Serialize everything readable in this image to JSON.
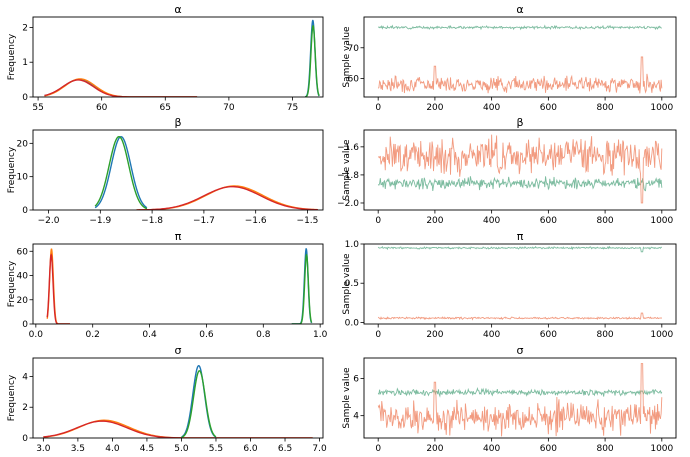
{
  "figure": {
    "kind": "traceplot",
    "panels_per_row": 2
  },
  "colors": {
    "chain_a": "#1f77b4",
    "chain_b": "#ff7f0e",
    "chain_c": "#2ca02c",
    "chain_d": "#d62728",
    "trace_high": "#66b08f",
    "trace_low": "#f08a6a"
  },
  "chart_data": [
    {
      "type": "line",
      "title": "α",
      "ylabel": "Frequency",
      "xlim": [
        54.6,
        77.4
      ],
      "ylim": [
        0,
        2.3
      ],
      "xticks": [
        55,
        60,
        65,
        70,
        75
      ],
      "xtick_labels": [
        "55",
        "60",
        "65",
        "70",
        "75"
      ],
      "yticks": [
        0,
        1,
        2
      ],
      "ytick_labels": [
        "0",
        "1",
        "2"
      ],
      "modes": [
        {
          "center": 58.2,
          "sd": 1.2,
          "peak": 0.5,
          "range": [
            55.5,
            67.5
          ],
          "series": [
            {
              "color": "chain_a",
              "values_scale": 1.0,
              "shift": 0.0
            },
            {
              "color": "chain_b",
              "values_scale": 1.04,
              "shift": 0.1
            },
            {
              "color": "chain_d",
              "values_scale": 0.98,
              "shift": -0.05
            }
          ]
        },
        {
          "center": 76.6,
          "sd": 0.17,
          "peak": 2.2,
          "range": [
            76.0,
            77.1
          ],
          "series": [
            {
              "color": "chain_a",
              "values_scale": 1.0,
              "shift": 0.0
            },
            {
              "color": "chain_c",
              "values_scale": 0.93,
              "shift": 0.02
            }
          ]
        }
      ]
    },
    {
      "type": "line",
      "title": "α",
      "ylabel": "Sample value",
      "xlim": [
        -50,
        1050
      ],
      "ylim": [
        54,
        80
      ],
      "xticks": [
        0,
        200,
        400,
        600,
        800,
        1000
      ],
      "xtick_labels": [
        "0",
        "200",
        "400",
        "600",
        "800",
        "1000"
      ],
      "yticks": [
        60,
        70
      ],
      "ytick_labels": [
        "60",
        "70"
      ],
      "traces": [
        {
          "color": "trace_high",
          "mean": 76.6,
          "noise": 0.2,
          "seed": 3
        },
        {
          "color": "trace_low",
          "mean": 58.2,
          "noise": 1.2,
          "seed": 7,
          "spikes": [
            [
              200,
              64
            ],
            [
              930,
              67
            ]
          ]
        }
      ]
    },
    {
      "type": "line",
      "title": "β",
      "ylabel": "Frequency",
      "xlim": [
        -2.03,
        -1.47
      ],
      "ylim": [
        0,
        24
      ],
      "xticks": [
        -2.0,
        -1.9,
        -1.8,
        -1.7,
        -1.6,
        -1.5
      ],
      "xtick_labels": [
        "−2.0",
        "−1.9",
        "−1.8",
        "−1.7",
        "−1.6",
        "−1.5"
      ],
      "yticks": [
        0,
        10,
        20
      ],
      "ytick_labels": [
        "0",
        "10",
        "20"
      ],
      "modes": [
        {
          "center": -1.86,
          "sd": 0.019,
          "peak": 22,
          "range": [
            -1.91,
            -1.81
          ],
          "series": [
            {
              "color": "chain_a",
              "values_scale": 1.0,
              "shift": 0.0
            },
            {
              "color": "chain_c",
              "values_scale": 1.0,
              "shift": -0.004
            }
          ]
        },
        {
          "center": -1.645,
          "sd": 0.055,
          "peak": 7,
          "range": [
            -1.83,
            -1.48
          ],
          "series": [
            {
              "color": "chain_b",
              "values_scale": 1.03,
              "shift": 0.004
            },
            {
              "color": "chain_d",
              "values_scale": 1.0,
              "shift": 0.0
            }
          ]
        }
      ]
    },
    {
      "type": "line",
      "title": "β",
      "ylabel": "Sample value",
      "xlim": [
        -50,
        1050
      ],
      "ylim": [
        -2.05,
        -1.48
      ],
      "xticks": [
        0,
        200,
        400,
        600,
        800,
        1000
      ],
      "xtick_labels": [
        "0",
        "200",
        "400",
        "600",
        "800",
        "1000"
      ],
      "yticks": [
        -2.0,
        -1.8,
        -1.6
      ],
      "ytick_labels": [
        "−2.0",
        "−1.8",
        "−1.6"
      ],
      "traces": [
        {
          "color": "trace_high",
          "mean": -1.86,
          "noise": 0.02,
          "seed": 11
        },
        {
          "color": "trace_low",
          "mean": -1.66,
          "noise": 0.06,
          "seed": 17,
          "spikes": [
            [
              930,
              -2.0
            ]
          ]
        }
      ]
    },
    {
      "type": "line",
      "title": "π",
      "ylabel": "Frequency",
      "xlim": [
        -0.01,
        1.01
      ],
      "ylim": [
        0,
        66
      ],
      "xticks": [
        0.0,
        0.2,
        0.4,
        0.6,
        0.8,
        1.0
      ],
      "xtick_labels": [
        "0.0",
        "0.2",
        "0.4",
        "0.6",
        "0.8",
        "1.0"
      ],
      "yticks": [
        0,
        20,
        40,
        60
      ],
      "ytick_labels": [
        "0",
        "20",
        "40",
        "60"
      ],
      "modes": [
        {
          "center": 0.055,
          "sd": 0.0065,
          "peak": 60,
          "range": [
            0.04,
            0.12
          ],
          "series": [
            {
              "color": "chain_b",
              "values_scale": 1.03,
              "shift": 0.0
            },
            {
              "color": "chain_d",
              "values_scale": 0.95,
              "shift": -0.001
            }
          ]
        },
        {
          "center": 0.951,
          "sd": 0.0065,
          "peak": 62,
          "range": [
            0.9,
            0.97
          ],
          "series": [
            {
              "color": "chain_a",
              "values_scale": 1.0,
              "shift": 0.0
            },
            {
              "color": "chain_c",
              "values_scale": 0.92,
              "shift": 0.001
            }
          ]
        }
      ]
    },
    {
      "type": "line",
      "title": "π",
      "ylabel": "Sample value",
      "xlim": [
        -50,
        1050
      ],
      "ylim": [
        -0.02,
        1.0
      ],
      "xticks": [
        0,
        200,
        400,
        600,
        800,
        1000
      ],
      "xtick_labels": [
        "0",
        "200",
        "400",
        "600",
        "800",
        "1000"
      ],
      "yticks": [
        0.0,
        0.5,
        1.0
      ],
      "ytick_labels": [
        "0.0",
        "0.5",
        "1.0"
      ],
      "traces": [
        {
          "color": "trace_high",
          "mean": 0.95,
          "noise": 0.006,
          "seed": 23,
          "spikes": [
            [
              930,
              0.9
            ]
          ]
        },
        {
          "color": "trace_low",
          "mean": 0.055,
          "noise": 0.006,
          "seed": 29,
          "spikes": [
            [
              930,
              0.12
            ]
          ]
        }
      ]
    },
    {
      "type": "line",
      "title": "σ",
      "ylabel": "Frequency",
      "xlim": [
        2.85,
        7.05
      ],
      "ylim": [
        0,
        5.2
      ],
      "xticks": [
        3.0,
        3.5,
        4.0,
        4.5,
        5.0,
        5.5,
        6.0,
        6.5,
        7.0
      ],
      "xtick_labels": [
        "3.0",
        "3.5",
        "4.0",
        "4.5",
        "5.0",
        "5.5",
        "6.0",
        "6.5",
        "7.0"
      ],
      "yticks": [
        0,
        2,
        4
      ],
      "ytick_labels": [
        "0",
        "2",
        "4"
      ],
      "modes": [
        {
          "center": 3.85,
          "sd": 0.36,
          "peak": 1.1,
          "range": [
            3.0,
            6.9
          ],
          "series": [
            {
              "color": "chain_b",
              "values_scale": 1.05,
              "shift": 0.03
            },
            {
              "color": "chain_d",
              "values_scale": 1.0,
              "shift": 0.0
            }
          ]
        },
        {
          "center": 5.25,
          "sd": 0.085,
          "peak": 4.7,
          "range": [
            5.0,
            5.5
          ],
          "series": [
            {
              "color": "chain_a",
              "values_scale": 1.0,
              "shift": 0.0
            },
            {
              "color": "chain_c",
              "values_scale": 0.93,
              "shift": 0.01
            }
          ]
        }
      ]
    },
    {
      "type": "line",
      "title": "σ",
      "ylabel": "Sample value",
      "xlim": [
        -50,
        1050
      ],
      "ylim": [
        2.8,
        7.1
      ],
      "xticks": [
        0,
        200,
        400,
        600,
        800,
        1000
      ],
      "xtick_labels": [
        "0",
        "200",
        "400",
        "600",
        "800",
        "1000"
      ],
      "yticks": [
        4,
        6
      ],
      "ytick_labels": [
        "4",
        "6"
      ],
      "traces": [
        {
          "color": "trace_high",
          "mean": 5.25,
          "noise": 0.08,
          "seed": 31
        },
        {
          "color": "trace_low",
          "mean": 3.9,
          "noise": 0.4,
          "seed": 37,
          "spikes": [
            [
              200,
              5.8
            ],
            [
              930,
              6.8
            ]
          ]
        }
      ]
    }
  ]
}
